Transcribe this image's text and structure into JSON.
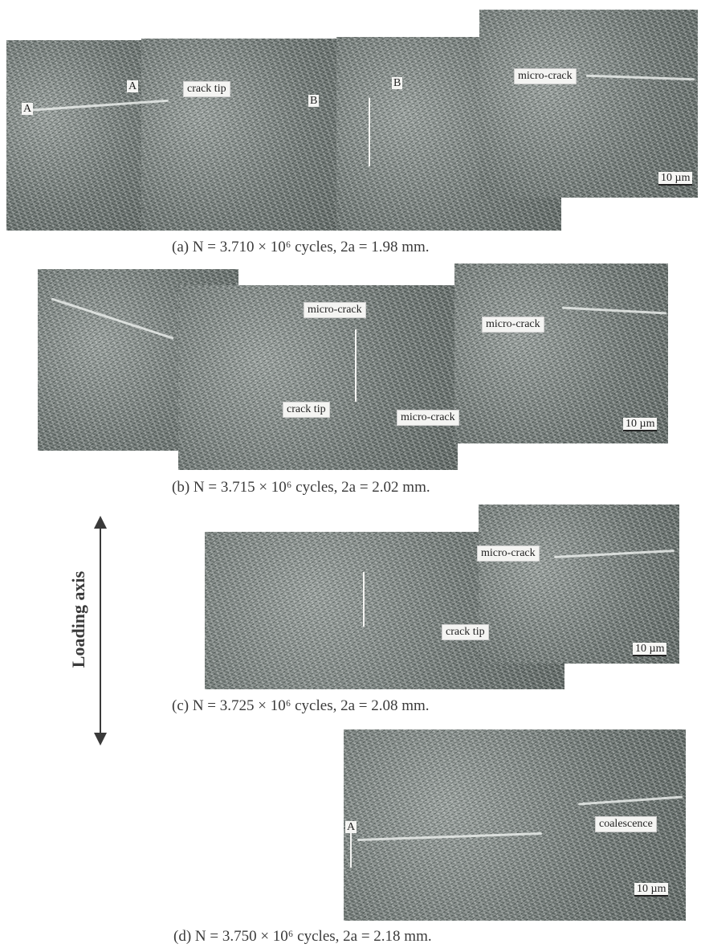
{
  "panels": [
    {
      "id": "a",
      "caption": "(a) N = 3.710 × 10⁶ cycles, 2a = 1.98 mm.",
      "labels": [
        "crack tip",
        "micro-crack"
      ],
      "markers": [
        "A",
        "A",
        "B",
        "B"
      ],
      "scale": "10 µm"
    },
    {
      "id": "b",
      "caption": "(b) N = 3.715 × 10⁶ cycles, 2a = 2.02 mm.",
      "labels": [
        "micro-crack",
        "micro-crack",
        "crack tip",
        "micro-crack"
      ],
      "scale": "10 µm"
    },
    {
      "id": "c",
      "caption": "(c) N = 3.725 × 10⁶ cycles, 2a = 2.08 mm.",
      "labels": [
        "micro-crack",
        "crack tip"
      ],
      "scale": "10 µm"
    },
    {
      "id": "d",
      "caption": "(d) N = 3.750 × 10⁶ cycles, 2a = 2.18 mm.",
      "labels": [
        "coalescence"
      ],
      "markers": [
        "A"
      ],
      "scale": "10 µm"
    }
  ],
  "loading_axis": "Loading axis"
}
